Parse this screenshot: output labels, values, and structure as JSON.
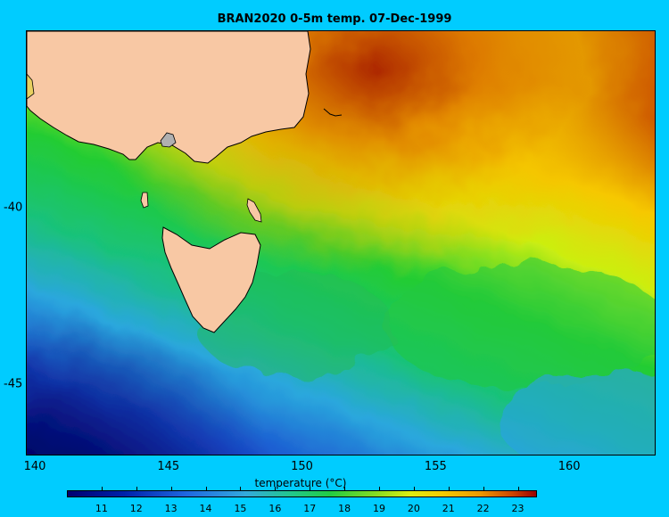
{
  "title": "BRAN2020 0-5m temp. 07-Dec-1999",
  "x_ticks": [
    "140",
    "145",
    "150",
    "155",
    "160"
  ],
  "y_ticks": [
    "-40",
    "-45"
  ],
  "colorbar": {
    "label": "temperature (°C)",
    "ticks": [
      "11",
      "12",
      "13",
      "14",
      "15",
      "16",
      "17",
      "18",
      "19",
      "20",
      "21",
      "22",
      "23"
    ],
    "range": [
      10,
      23.5
    ]
  },
  "colors": {
    "land": "#f8c8a4",
    "lake": "#b0b0b0",
    "background": "#00ccff"
  },
  "map_extent": {
    "lon": [
      139.7,
      163.2
    ],
    "lat": [
      -47,
      -35
    ]
  }
}
